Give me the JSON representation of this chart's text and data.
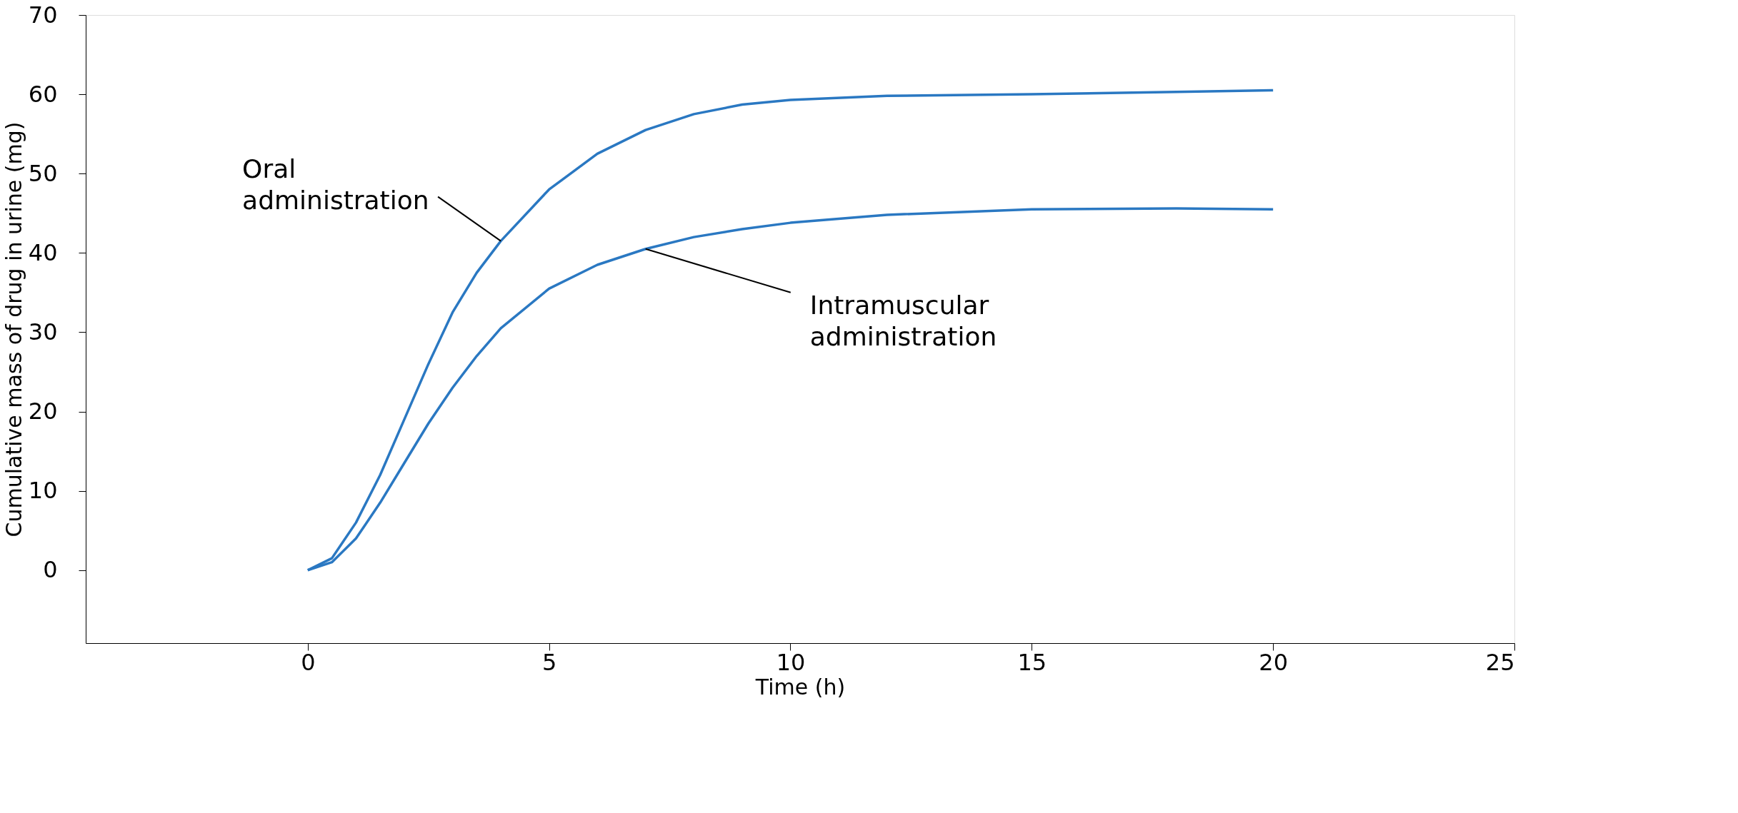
{
  "chart_data": {
    "type": "line",
    "xlabel": "Time (h)",
    "ylabel": "Cumulative mass of drug in urine (mg)",
    "xlim": [
      -4.6,
      25
    ],
    "ylim": [
      -9.2,
      70
    ],
    "xticks": [
      0,
      5,
      10,
      15,
      20,
      25
    ],
    "yticks": [
      0,
      10,
      20,
      30,
      40,
      50,
      60,
      70
    ],
    "grid": false,
    "marker": "none",
    "line_style": "solid",
    "annotations": [
      {
        "text": "Oral administration",
        "x": 4,
        "y": 41.5
      },
      {
        "text": "Intramuscular administration",
        "x": 7,
        "y": 40.5
      }
    ],
    "series": [
      {
        "color": "#2a78c2",
        "x": [
          0,
          0.5,
          1,
          1.5,
          2,
          2.5,
          3,
          3.5,
          4,
          5,
          6,
          7,
          8,
          9,
          10,
          12,
          15,
          18,
          20
        ],
        "values": [
          0,
          1.5,
          6,
          12,
          19,
          26,
          32.5,
          37.5,
          41.5,
          48,
          52.5,
          55.5,
          57.5,
          58.7,
          59.3,
          59.8,
          60,
          60.3,
          60.5
        ]
      },
      {
        "color": "#2a78c2",
        "x": [
          0,
          0.5,
          1,
          1.5,
          2,
          2.5,
          3,
          3.5,
          4,
          5,
          6,
          7,
          8,
          9,
          10,
          12,
          15,
          18,
          20
        ],
        "values": [
          0,
          1,
          4,
          8.5,
          13.5,
          18.5,
          23,
          27,
          30.5,
          35.5,
          38.5,
          40.5,
          42,
          43,
          43.8,
          44.8,
          45.5,
          45.6,
          45.5
        ]
      }
    ]
  }
}
